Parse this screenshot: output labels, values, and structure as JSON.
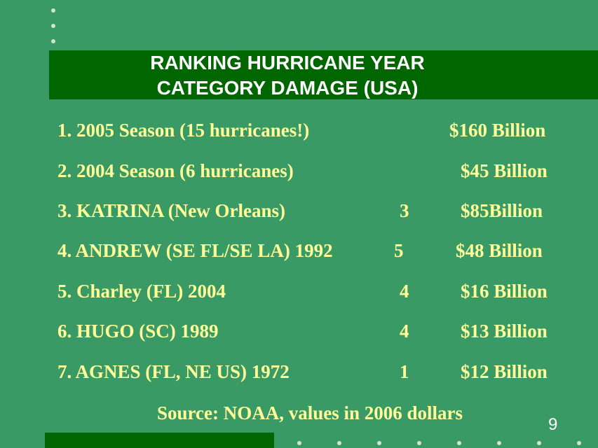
{
  "slide": {
    "title_line1": "RANKING HURRICANE YEAR",
    "title_line2": "CATEGORY DAMAGE (USA)",
    "source": "Source: NOAA, values in 2006 dollars",
    "page_number": "9"
  },
  "rows": [
    {
      "name": "1. 2005 Season (15 hurricanes!)",
      "category": "",
      "damage": "$160 Billion"
    },
    {
      "name": "2. 2004 Season (6 hurricanes)",
      "category": "",
      "damage": "$45 Billion"
    },
    {
      "name": "3. KATRINA (New Orleans)",
      "category": "3",
      "damage": "$85Billion"
    },
    {
      "name": "4. ANDREW (SE FL/SE LA) 1992",
      "category": "5",
      "damage": "$48 Billion"
    },
    {
      "name": "5. Charley (FL) 2004",
      "category": "4",
      "damage": "$16 Billion"
    },
    {
      "name": "6. HUGO (SC) 1989",
      "category": "4",
      "damage": "$13 Billion"
    },
    {
      "name": "7. AGNES (FL, NE US) 1972",
      "category": "1",
      "damage": "$12 Billion"
    }
  ],
  "colors": {
    "background": "#3a9a66",
    "title_bar": "#006600",
    "body_text": "#ffff99",
    "title_text": "#ffffff"
  }
}
